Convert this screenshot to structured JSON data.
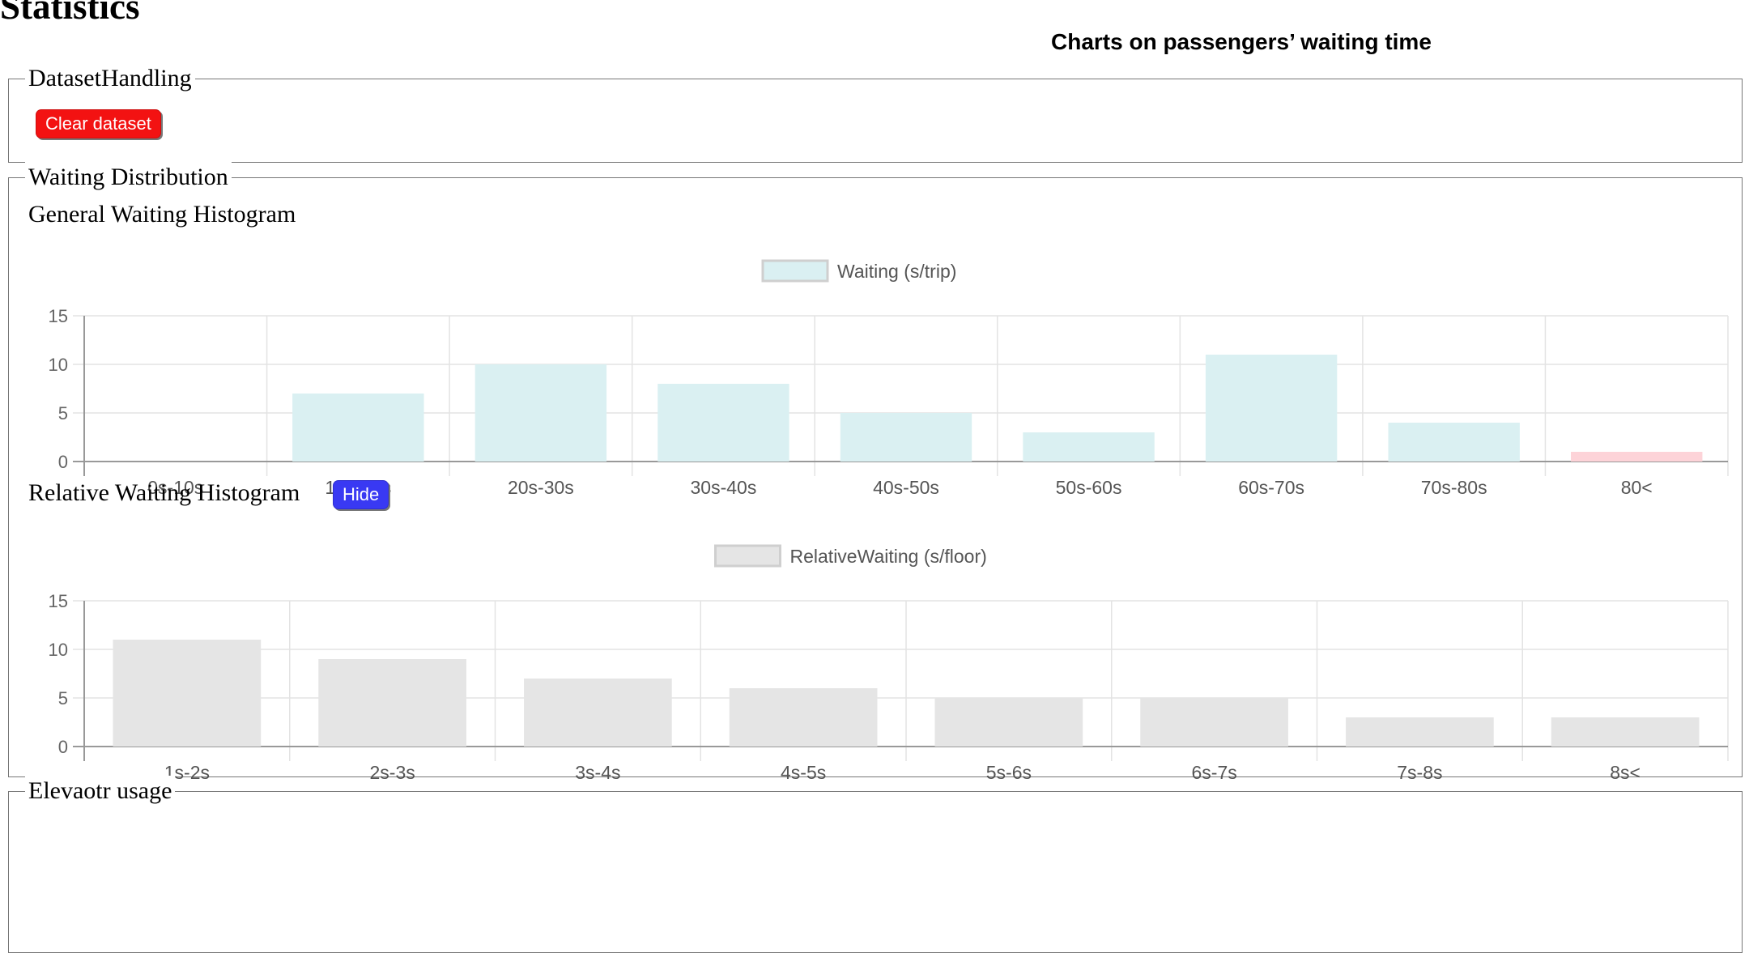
{
  "page": {
    "title": "Statistics",
    "charts_heading": "Charts on passengers’ waiting time"
  },
  "dataset_handling": {
    "legend": "DatasetHandling",
    "clear_label": "Clear dataset"
  },
  "waiting_distribution": {
    "legend": "Waiting Distribution",
    "general_title": "General Waiting Histogram",
    "relative_title": "Relative Waiting Histogram",
    "hide_label": "Hide"
  },
  "elevator_usage": {
    "legend": "Elevaotr usage"
  },
  "colors": {
    "general_bar": "#daf0f2",
    "general_overflow_bar": "#fdd3d8",
    "relative_bar": "#e5e5e5",
    "clear_button": "#f31212",
    "hide_button": "#3939f3"
  },
  "chart_data": [
    {
      "type": "bar",
      "title": "",
      "series": [
        {
          "name": "Waiting (s/trip)",
          "values": [
            0,
            7,
            10,
            8,
            5,
            3,
            11,
            4,
            1
          ]
        }
      ],
      "categories": [
        "0s-10s",
        "10s-20s",
        "20s-30s",
        "30s-40s",
        "40s-50s",
        "50s-60s",
        "60s-70s",
        "70s-80s",
        "80<"
      ],
      "yticks": [
        "0",
        "5",
        "10",
        "15"
      ],
      "ylim": [
        0,
        15
      ],
      "grid": true,
      "legend": "top-center"
    },
    {
      "type": "bar",
      "title": "",
      "series": [
        {
          "name": "RelativeWaiting (s/floor)",
          "values": [
            11,
            9,
            7,
            6,
            5,
            5,
            3,
            3
          ]
        }
      ],
      "categories": [
        "1s-2s",
        "2s-3s",
        "3s-4s",
        "4s-5s",
        "5s-6s",
        "6s-7s",
        "7s-8s",
        "8s<"
      ],
      "yticks": [
        "0",
        "5",
        "10",
        "15"
      ],
      "ylim": [
        0,
        15
      ],
      "grid": true,
      "legend": "top-center"
    }
  ]
}
